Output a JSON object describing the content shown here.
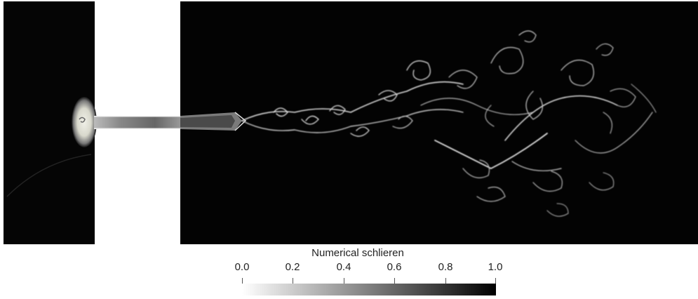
{
  "figure": {
    "colorbar": {
      "title": "Numerical schlieren",
      "min": 0.0,
      "max": 1.0,
      "ticks": [
        "0.0",
        "0.2",
        "0.4",
        "0.6",
        "0.8",
        "1.0"
      ],
      "colormap": [
        "#ffffff",
        "#000000"
      ]
    }
  }
}
